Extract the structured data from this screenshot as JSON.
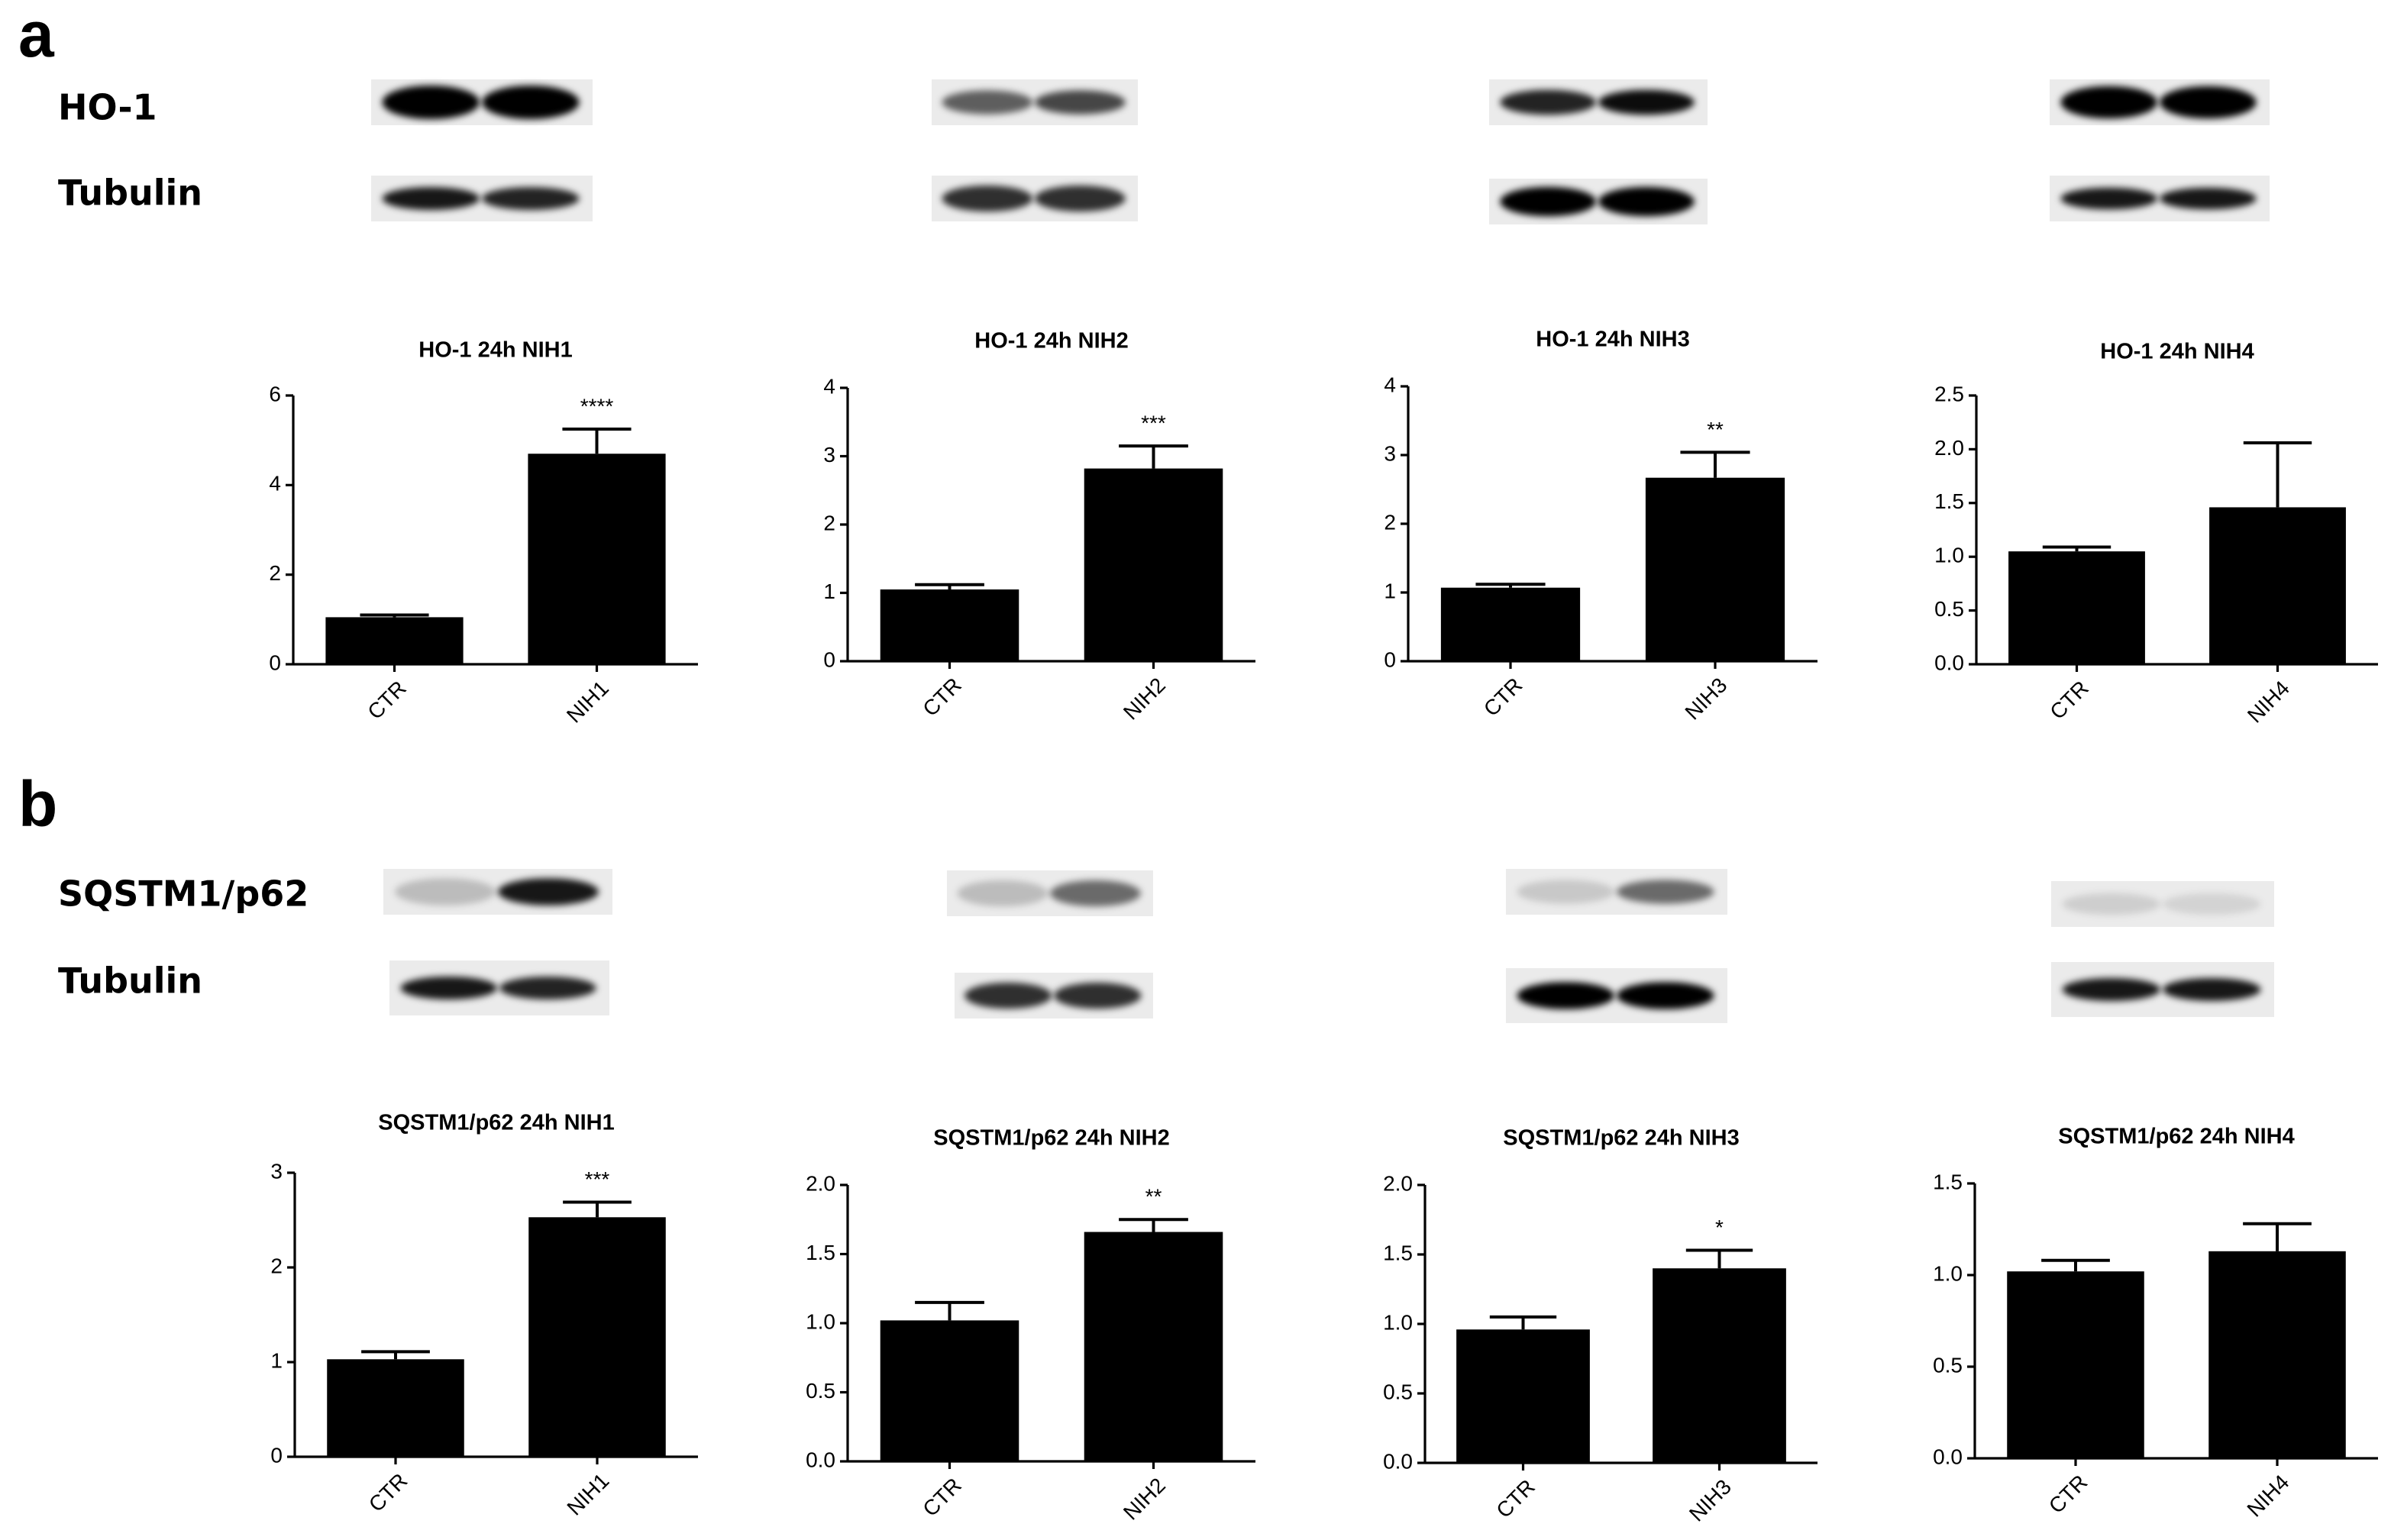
{
  "panels": [
    {
      "label": "a",
      "blots": [
        "HO-1",
        "Tubulin"
      ]
    },
    {
      "label": "b",
      "blots": [
        "SQSTM1/p62",
        "Tubulin"
      ]
    }
  ],
  "chart_data": [
    {
      "type": "bar",
      "title": "HO-1 24h NIH1",
      "categories": [
        "CTR",
        "NIH1"
      ],
      "values": [
        1.05,
        4.7
      ],
      "errors": [
        0.05,
        0.55
      ],
      "significance": [
        null,
        "****"
      ],
      "color": "#000000",
      "ylim": [
        0,
        6
      ],
      "yticks": [
        0,
        2,
        4,
        6
      ]
    },
    {
      "type": "bar",
      "title": "HO-1 24h NIH2",
      "categories": [
        "CTR",
        "NIH2"
      ],
      "values": [
        1.05,
        2.82
      ],
      "errors": [
        0.07,
        0.33
      ],
      "significance": [
        null,
        "***"
      ],
      "color": "#000000",
      "ylim": [
        0,
        4
      ],
      "yticks": [
        0,
        1,
        2,
        3,
        4
      ]
    },
    {
      "type": "bar",
      "title": "HO-1 24h NIH3",
      "categories": [
        "CTR",
        "NIH3"
      ],
      "values": [
        1.07,
        2.67
      ],
      "errors": [
        0.05,
        0.37
      ],
      "significance": [
        null,
        "**"
      ],
      "color": "#000000",
      "ylim": [
        0,
        4
      ],
      "yticks": [
        0,
        1,
        2,
        3,
        4
      ]
    },
    {
      "type": "bar",
      "title": "HO-1 24h NIH4",
      "categories": [
        "CTR",
        "NIH4"
      ],
      "values": [
        1.05,
        1.46
      ],
      "errors": [
        0.04,
        0.6
      ],
      "significance": [
        null,
        null
      ],
      "color": "#000000",
      "ylim": [
        0,
        2.5
      ],
      "yticks": [
        {
          "value": 0,
          "label": "0.0"
        },
        0.5,
        {
          "value": 1,
          "label": "1.0"
        },
        1.5,
        {
          "value": 2,
          "label": "2.0"
        },
        2.5
      ]
    },
    {
      "type": "bar",
      "title": "SQSTM1/p62 24h NIH1",
      "categories": [
        "CTR",
        "NIH1"
      ],
      "values": [
        1.03,
        2.53
      ],
      "errors": [
        0.08,
        0.16
      ],
      "significance": [
        null,
        "***"
      ],
      "color": "#000000",
      "ylim": [
        0,
        3
      ],
      "yticks": [
        0,
        1,
        2,
        3
      ]
    },
    {
      "type": "bar",
      "title": "SQSTM1/p62 24h NIH2",
      "categories": [
        "CTR",
        "NIH2"
      ],
      "values": [
        1.02,
        1.66
      ],
      "errors": [
        0.13,
        0.09
      ],
      "significance": [
        null,
        "**"
      ],
      "color": "#000000",
      "ylim": [
        0,
        2
      ],
      "yticks": [
        {
          "value": 0,
          "label": "0.0"
        },
        0.5,
        {
          "value": 1,
          "label": "1.0"
        },
        1.5,
        {
          "value": 2,
          "label": "2.0"
        }
      ]
    },
    {
      "type": "bar",
      "title": "SQSTM1/p62 24h NIH3",
      "categories": [
        "CTR",
        "NIH3"
      ],
      "values": [
        0.96,
        1.4
      ],
      "errors": [
        0.09,
        0.13
      ],
      "significance": [
        null,
        "*"
      ],
      "color": "#000000",
      "ylim": [
        0,
        2
      ],
      "yticks": [
        {
          "value": 0,
          "label": "0.0"
        },
        0.5,
        {
          "value": 1,
          "label": "1.0"
        },
        1.5,
        {
          "value": 2,
          "label": "2.0"
        }
      ]
    },
    {
      "type": "bar",
      "title": "SQSTM1/p62 24h NIH4",
      "categories": [
        "CTR",
        "NIH4"
      ],
      "values": [
        1.02,
        1.13
      ],
      "errors": [
        0.06,
        0.15
      ],
      "significance": [
        null,
        null
      ],
      "color": "#000000",
      "ylim": [
        0,
        1.5
      ],
      "yticks": [
        {
          "value": 0,
          "label": "0.0"
        },
        0.5,
        {
          "value": 1,
          "label": "1.0"
        },
        1.5
      ]
    }
  ]
}
